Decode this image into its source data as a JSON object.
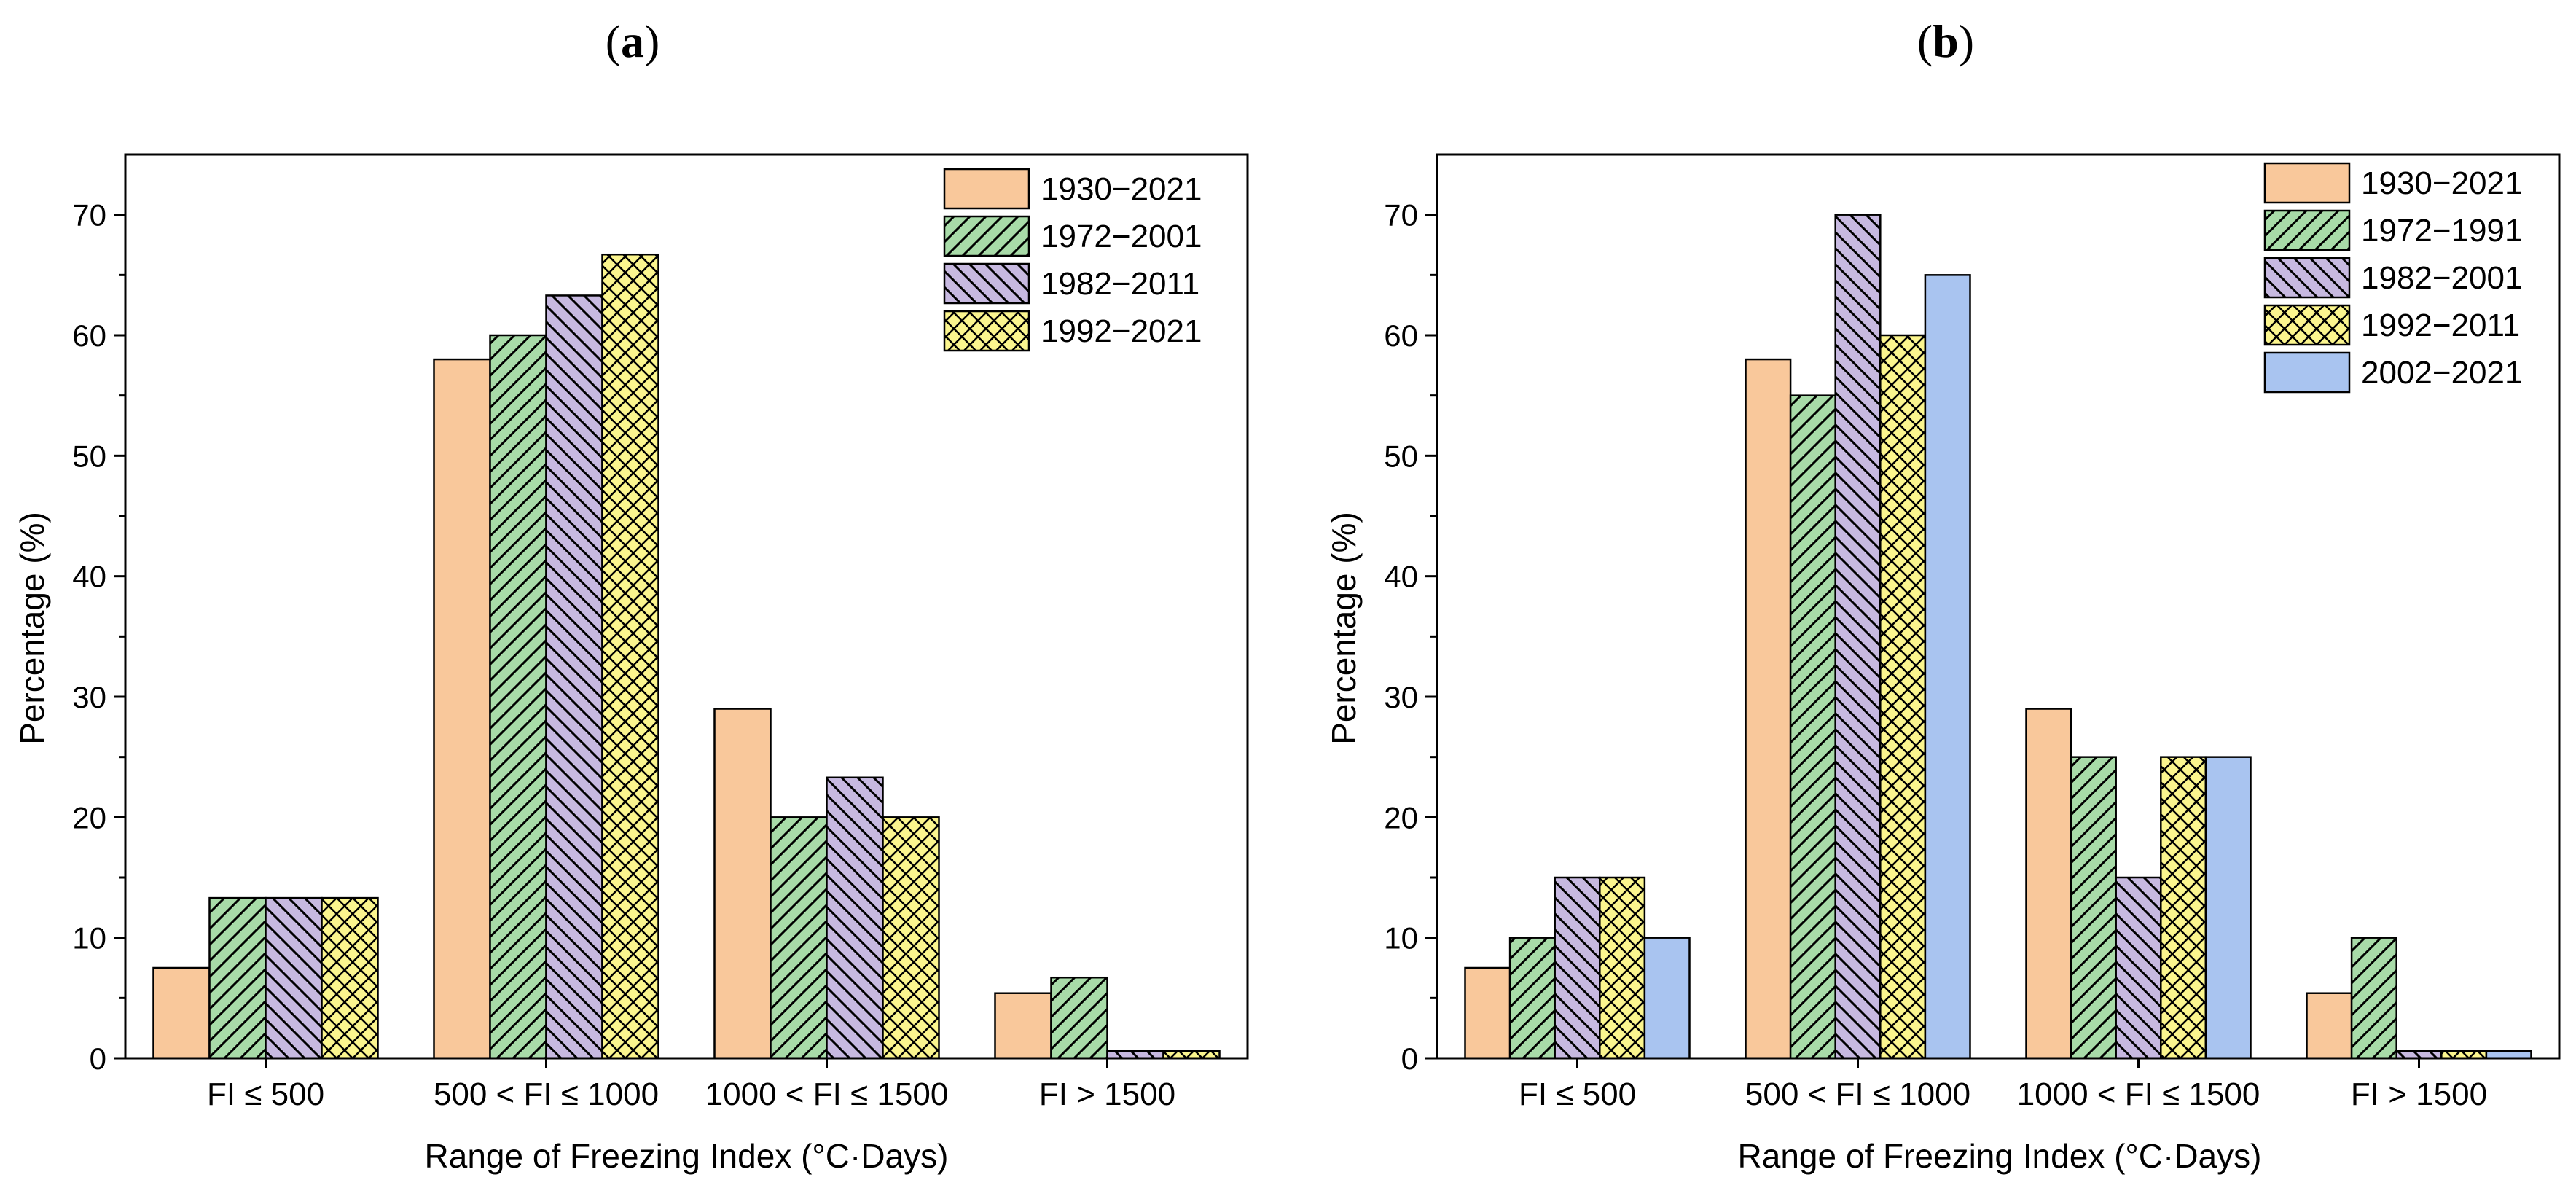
{
  "chart_data": [
    {
      "type": "bar",
      "panel": "(a)",
      "panel_letter": "a",
      "title": "",
      "categories": [
        "FI  ≤ 500",
        "500 < FI ≤ 1000",
        "1000 < FI ≤ 1500",
        "FI > 1500"
      ],
      "series": [
        {
          "name": "1930−2021",
          "values": [
            7.5,
            58,
            29,
            5.4
          ],
          "color": "#f9c89b",
          "pattern": "none"
        },
        {
          "name": "1972−2001",
          "values": [
            13.3,
            60,
            20,
            6.7
          ],
          "color": "#a8dba8",
          "pattern": "fwd"
        },
        {
          "name": "1982−2011",
          "values": [
            13.3,
            63.3,
            23.3,
            0.6
          ],
          "color": "#c7b9e0",
          "pattern": "back"
        },
        {
          "name": "1992−2021",
          "values": [
            13.3,
            66.7,
            20,
            0.6
          ],
          "color": "#fbf58e",
          "pattern": "cross"
        }
      ],
      "xlabel": "Range of Freezing Index (°C·Days)",
      "ylabel": "Percentage (%)",
      "ylim": [
        0,
        75
      ],
      "yticks": [
        0,
        10,
        20,
        30,
        40,
        50,
        60,
        70
      ],
      "grid": false,
      "legend_position": "top-right"
    },
    {
      "type": "bar",
      "panel": "(b)",
      "panel_letter": "b",
      "title": "",
      "categories": [
        "FI  ≤ 500",
        "500 < FI ≤ 1000",
        "1000 < FI ≤ 1500",
        "FI > 1500"
      ],
      "series": [
        {
          "name": "1930−2021",
          "values": [
            7.5,
            58,
            29,
            5.4
          ],
          "color": "#f9c89b",
          "pattern": "none"
        },
        {
          "name": "1972−1991",
          "values": [
            10,
            55,
            25,
            10
          ],
          "color": "#a8dba8",
          "pattern": "fwd"
        },
        {
          "name": "1982−2001",
          "values": [
            15,
            70,
            15,
            0.6
          ],
          "color": "#c7b9e0",
          "pattern": "back"
        },
        {
          "name": "1992−2011",
          "values": [
            15,
            60,
            25,
            0.6
          ],
          "color": "#fbf58e",
          "pattern": "cross"
        },
        {
          "name": "2002−2021",
          "values": [
            10,
            65,
            25,
            0.6
          ],
          "color": "#a9c4f0",
          "pattern": "none"
        }
      ],
      "xlabel": "Range of Freezing Index (°C·Days)",
      "ylabel": "Percentage (%)",
      "ylim": [
        0,
        75
      ],
      "yticks": [
        0,
        10,
        20,
        30,
        40,
        50,
        60,
        70
      ],
      "grid": false,
      "legend_position": "top-right"
    }
  ]
}
